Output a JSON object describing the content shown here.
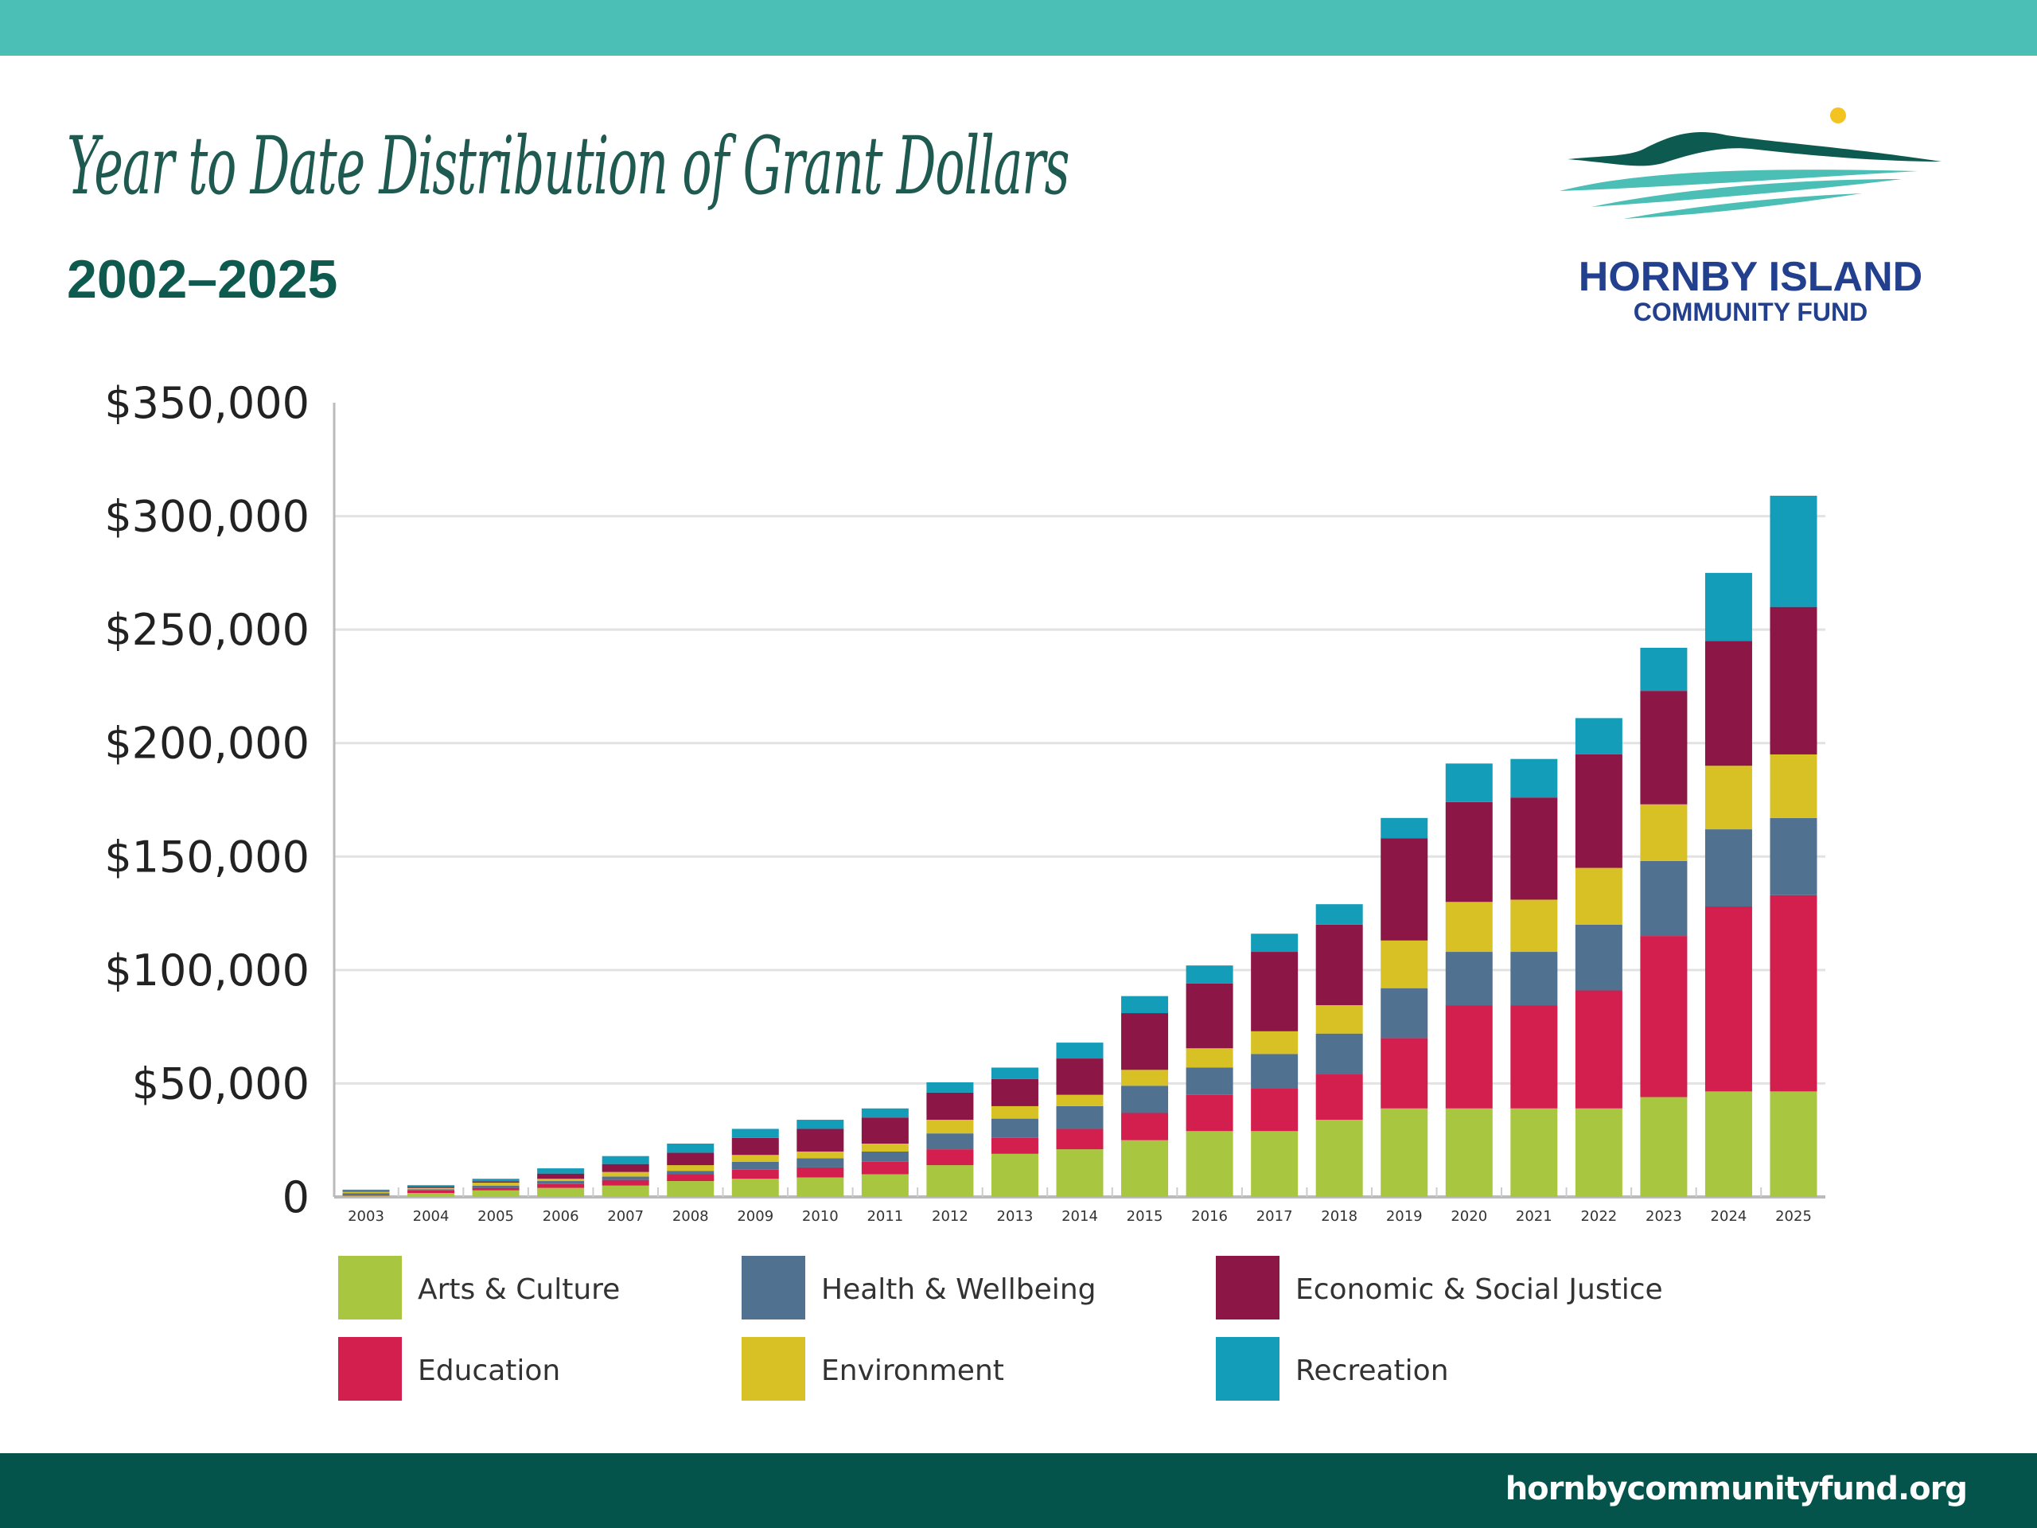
{
  "header": {
    "title": "Year to Date Distribution of Grant Dollars",
    "subtitle": "2002–2025",
    "logo_name": "HORNBY ISLAND",
    "logo_sub": "COMMUNITY FUND"
  },
  "footer": {
    "url": "hornbycommunityfund.org"
  },
  "colors": {
    "top_bar": "#4bbfb6",
    "bottom_bar": "#04544c"
  },
  "chart_data": {
    "type": "bar",
    "stacked": true,
    "title": "Year to Date Distribution of Grant Dollars",
    "xlabel": "",
    "ylabel": "",
    "ylim": [
      0,
      350000
    ],
    "yticks": [
      0,
      50000,
      100000,
      150000,
      200000,
      250000,
      300000,
      350000
    ],
    "ytick_labels": [
      "0",
      "$50,000",
      "$100,000",
      "$150,000",
      "$200,000",
      "$250,000",
      "$300,000",
      "$350,000"
    ],
    "grid": true,
    "legend_position": "bottom",
    "categories": [
      "2003",
      "2004",
      "2005",
      "2006",
      "2007",
      "2008",
      "2009",
      "2010",
      "2011",
      "2012",
      "2013",
      "2014",
      "2015",
      "2016",
      "2017",
      "2018",
      "2019",
      "2020",
      "2021",
      "2022",
      "2023",
      "2024",
      "2025"
    ],
    "series": [
      {
        "name": "Arts & Culture",
        "color": "#a9c641",
        "values": [
          600,
          1700,
          2900,
          4000,
          5000,
          7000,
          8000,
          8600,
          10000,
          14000,
          19000,
          21000,
          25000,
          29000,
          29000,
          34000,
          39000,
          39000,
          39000,
          39000,
          44000,
          46500,
          46500
        ]
      },
      {
        "name": "Education",
        "color": "#d21f4e",
        "values": [
          500,
          1200,
          1100,
          1700,
          2500,
          3000,
          4000,
          4400,
          5500,
          7000,
          7000,
          9000,
          12000,
          16000,
          19000,
          20000,
          31000,
          45500,
          45500,
          52000,
          71000,
          81500,
          86500
        ]
      },
      {
        "name": "Health & Wellbeing",
        "color": "#50718f",
        "values": [
          600,
          500,
          1000,
          1300,
          1500,
          1500,
          3500,
          4000,
          4500,
          7000,
          8500,
          10000,
          12000,
          12000,
          15000,
          18000,
          22000,
          23500,
          23500,
          29000,
          33000,
          34000,
          34000
        ]
      },
      {
        "name": "Environment",
        "color": "#d8c125",
        "values": [
          600,
          600,
          1300,
          1000,
          2000,
          2500,
          3000,
          3000,
          3500,
          6000,
          5500,
          5000,
          7000,
          8500,
          10000,
          12500,
          21000,
          22000,
          23000,
          25000,
          25000,
          28000,
          28000
        ]
      },
      {
        "name": "Economic & Social Justice",
        "color": "#8c1646",
        "values": [
          300,
          600,
          600,
          2300,
          3500,
          5500,
          7500,
          10000,
          11500,
          12000,
          12000,
          16000,
          25000,
          28500,
          35000,
          35500,
          45000,
          44000,
          45000,
          50000,
          50000,
          55000,
          65000
        ]
      },
      {
        "name": "Recreation",
        "color": "#139db8",
        "values": [
          600,
          600,
          1100,
          2300,
          3500,
          4000,
          4000,
          4000,
          4000,
          4500,
          5000,
          7000,
          7500,
          8000,
          8000,
          9000,
          9000,
          17000,
          17000,
          16000,
          19000,
          30000,
          49000
        ]
      }
    ]
  }
}
